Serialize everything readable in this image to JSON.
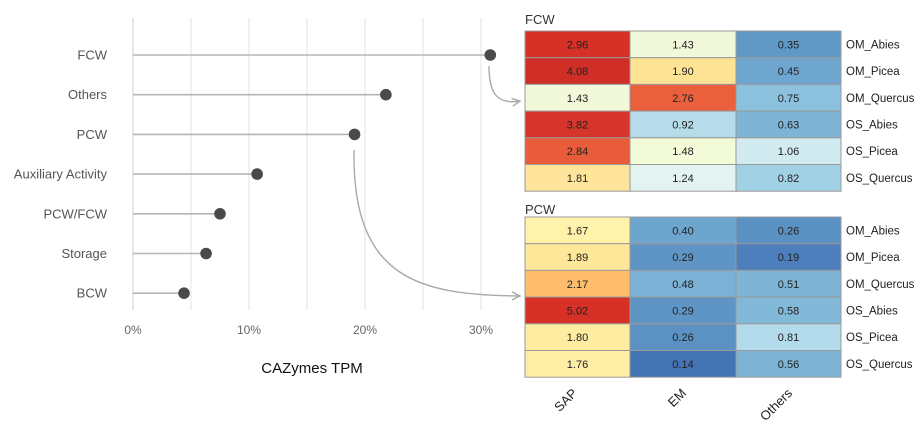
{
  "chart_data": [
    {
      "type": "lollipop",
      "xlabel": "CAZymes TPM",
      "xlim": [
        0,
        33
      ],
      "x_ticks": [
        "0%",
        "10%",
        "20%",
        "30%"
      ],
      "grid": "vertical",
      "categories": [
        "FCW",
        "Others",
        "PCW",
        "Auxiliary Activity",
        "PCW/FCW",
        "Storage",
        "BCW"
      ],
      "values": [
        30.8,
        21.8,
        19.1,
        10.7,
        7.5,
        6.3,
        4.4
      ],
      "colors": {
        "stem": "#b5b5b5",
        "dot": "#4a4a4a",
        "grid": "#e3e3e3"
      }
    },
    {
      "type": "heatmap",
      "title": "FCW",
      "columns": [
        "SAP",
        "EM",
        "Others"
      ],
      "rows": [
        "OM_Abies",
        "OM_Picea",
        "OM_Quercus",
        "OS_Abies",
        "OS_Picea",
        "OS_Quercus"
      ],
      "values": [
        [
          2.96,
          1.43,
          0.35
        ],
        [
          4.08,
          1.9,
          0.45
        ],
        [
          1.43,
          2.76,
          0.75
        ],
        [
          3.82,
          0.92,
          0.63
        ],
        [
          2.84,
          1.48,
          1.06
        ],
        [
          1.81,
          1.24,
          0.82
        ]
      ],
      "value_labels": [
        [
          "2.96",
          "1.43",
          "0.35"
        ],
        [
          "4.08",
          "1.90",
          "0.45"
        ],
        [
          "1.43",
          "2.76",
          "0.75"
        ],
        [
          "3.82",
          "0.92",
          "0.63"
        ],
        [
          "2.84",
          "1.48",
          "1.06"
        ],
        [
          "1.81",
          "1.24",
          "0.82"
        ]
      ],
      "colors": [
        [
          "#d73027",
          "#f1f9da",
          "#6199c6"
        ],
        [
          "#d02e27",
          "#fee394",
          "#6fa6cf"
        ],
        [
          "#f1f9da",
          "#ea5f3c",
          "#8cc1dd"
        ],
        [
          "#d6352b",
          "#b6dcea",
          "#7eb5d6"
        ],
        [
          "#e85b3b",
          "#f3fad7",
          "#d1ebf1"
        ],
        [
          "#fee59b",
          "#e3f3f2",
          "#a1d1e4"
        ]
      ]
    },
    {
      "type": "heatmap",
      "title": "PCW",
      "columns": [
        "SAP",
        "EM",
        "Others"
      ],
      "rows": [
        "OM_Abies",
        "OM_Picea",
        "OM_Quercus",
        "OS_Abies",
        "OS_Picea",
        "OS_Quercus"
      ],
      "values": [
        [
          1.67,
          0.4,
          0.26
        ],
        [
          1.89,
          0.29,
          0.19
        ],
        [
          2.17,
          0.48,
          0.51
        ],
        [
          5.02,
          0.29,
          0.58
        ],
        [
          1.8,
          0.26,
          0.81
        ],
        [
          1.76,
          0.14,
          0.56
        ]
      ],
      "value_labels": [
        [
          "1.67",
          "0.40",
          "0.26"
        ],
        [
          "1.89",
          "0.29",
          "0.19"
        ],
        [
          "2.17",
          "0.48",
          "0.51"
        ],
        [
          "5.02",
          "0.29",
          "0.58"
        ],
        [
          "1.80",
          "0.26",
          "0.81"
        ],
        [
          "1.76",
          "0.14",
          "0.56"
        ]
      ],
      "colors": [
        [
          "#fff3ac",
          "#6ea5cf",
          "#5a91c3"
        ],
        [
          "#fee799",
          "#5f95c5",
          "#4c7fbb"
        ],
        [
          "#fdbd6d",
          "#7ab1d5",
          "#7eb5d6"
        ],
        [
          "#d73027",
          "#5f95c5",
          "#82b9d8"
        ],
        [
          "#feeda0",
          "#5b92c3",
          "#b3dbeb"
        ],
        [
          "#feeda5",
          "#4474b4",
          "#7db4d6"
        ]
      ]
    }
  ],
  "connector_color": "#a9a9a9"
}
